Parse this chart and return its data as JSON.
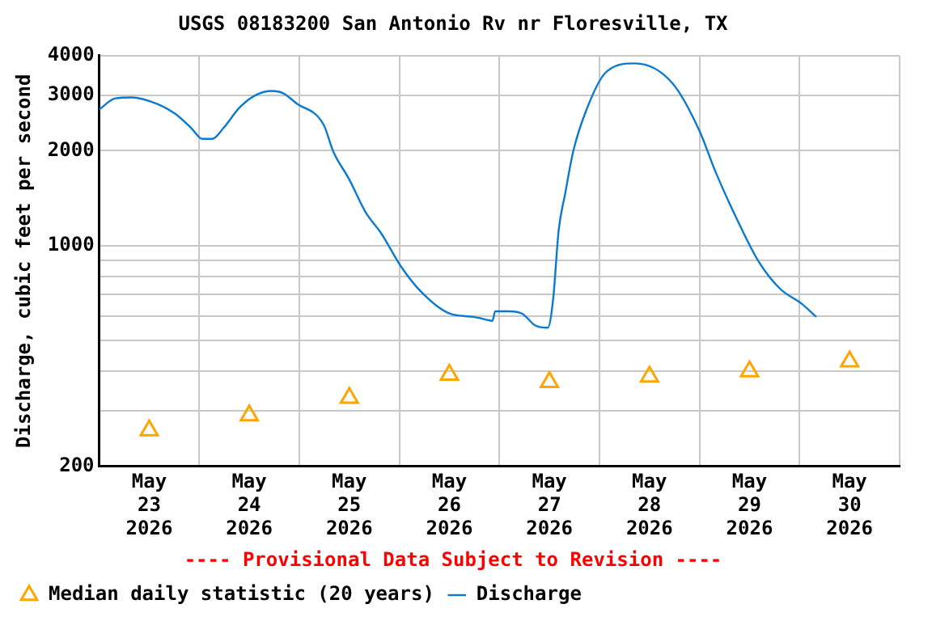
{
  "chart_data": {
    "type": "line",
    "title": "USGS 08183200 San Antonio Rv nr Floresville, TX",
    "ylabel": "Discharge, cubic feet per second",
    "annotations": [
      "---- Provisional Data Subject to Revision ----"
    ],
    "log": true,
    "grid": true,
    "legend": "bottom",
    "xlim": [
      "2026-05-23",
      "2026-05-31"
    ],
    "xticks": [
      {
        "value": "2026-05-23",
        "label": null
      },
      {
        "value": "2026-05-23T12:00",
        "label": "May 23 2026"
      },
      {
        "value": "2026-05-24",
        "label": null
      },
      {
        "value": "2026-05-24T12:00",
        "label": "May 24 2026"
      },
      {
        "value": "2026-05-25",
        "label": null
      },
      {
        "value": "2026-05-25T12:00",
        "label": "May 25 2026"
      },
      {
        "value": "2026-05-26",
        "label": null
      },
      {
        "value": "2026-05-26T12:00",
        "label": "May 26 2026"
      },
      {
        "value": "2026-05-27",
        "label": null
      },
      {
        "value": "2026-05-27T12:00",
        "label": "May 27 2026"
      },
      {
        "value": "2026-05-28",
        "label": null
      },
      {
        "value": "2026-05-28T12:00",
        "label": "May 28 2026"
      },
      {
        "value": "2026-05-29",
        "label": null
      },
      {
        "value": "2026-05-29T12:00",
        "label": "May 29 2026"
      },
      {
        "value": "2026-05-30",
        "label": null
      },
      {
        "value": "2026-05-30T12:00",
        "label": "May 30 2026"
      },
      {
        "value": "2026-05-31",
        "label": null
      }
    ],
    "ylim": [
      200,
      4000
    ],
    "yticks": [
      200,
      {
        "value": 300,
        "label": null
      },
      {
        "value": 400,
        "label": null
      },
      {
        "value": 500,
        "label": null
      },
      {
        "value": 600,
        "label": null
      },
      {
        "value": 700,
        "label": null
      },
      {
        "value": 800,
        "label": null
      },
      {
        "value": 900,
        "label": null
      },
      1000,
      2000,
      3000,
      4000
    ],
    "series": [
      {
        "name": "Median daily statistic (20 years)",
        "type": "scatter",
        "marker": "triangle",
        "color": "#ffa500",
        "x": [
          "2026-05-23T12:00",
          "2026-05-24T12:00",
          "2026-05-25T12:00",
          "2026-05-26T12:00",
          "2026-05-27T12:00",
          "2026-05-28T12:00",
          "2026-05-29T12:00",
          "2026-05-30T12:00"
        ],
        "values": [
          260,
          290,
          330,
          390,
          370,
          385,
          400,
          430
        ]
      },
      {
        "name": "Discharge",
        "type": "line",
        "marker": "none",
        "line_style": "solid",
        "color": "#0a7ad0",
        "x": [
          "2026-05-23T00:00",
          "2026-05-23T03:52",
          "2026-05-23T07:44",
          "2026-05-23T14:19",
          "2026-05-23T18:12",
          "2026-05-23T22:04",
          "2026-05-24T00:46",
          "2026-05-24T03:06",
          "2026-05-24T05:49",
          "2026-05-24T09:41",
          "2026-05-24T13:33",
          "2026-05-24T17:25",
          "2026-05-24T20:08",
          "2026-05-24T23:14",
          "2026-05-25T05:49",
          "2026-05-25T08:08",
          "2026-05-25T12:00",
          "2026-05-25T15:52",
          "2026-05-25T19:44",
          "2026-05-26T00:23",
          "2026-05-26T05:25",
          "2026-05-26T12:00",
          "2026-05-26T17:48",
          "2026-05-26T21:40",
          "2026-05-26T22:19",
          "2026-05-26T23:00",
          "2026-05-27T02:19",
          "2026-05-27T05:25",
          "2026-05-27T08:31",
          "2026-05-27T11:37",
          "2026-05-27T12:54",
          "2026-05-27T14:13",
          "2026-05-27T15:46",
          "2026-05-27T17:42",
          "2026-05-27T20:54",
          "2026-05-28T01:26",
          "2026-05-28T08:31",
          "2026-05-28T17:31",
          "2026-05-29T00:00",
          "2026-05-29T03:52",
          "2026-05-29T09:01",
          "2026-05-29T14:12",
          "2026-05-29T19:21",
          "2026-05-30T00:30",
          "2026-05-30T04:00"
        ],
        "values": [
          2700,
          2930,
          2950,
          2800,
          2620,
          2360,
          2180,
          2180,
          2360,
          2740,
          3000,
          3090,
          3040,
          2830,
          2420,
          1990,
          1620,
          1280,
          1090,
          860,
          710,
          610,
          595,
          580,
          578,
          620,
          620,
          610,
          560,
          550,
          680,
          1120,
          1460,
          1990,
          2700,
          3530,
          3780,
          3270,
          2310,
          1710,
          1210,
          890,
          730,
          655,
          595
        ]
      }
    ]
  }
}
